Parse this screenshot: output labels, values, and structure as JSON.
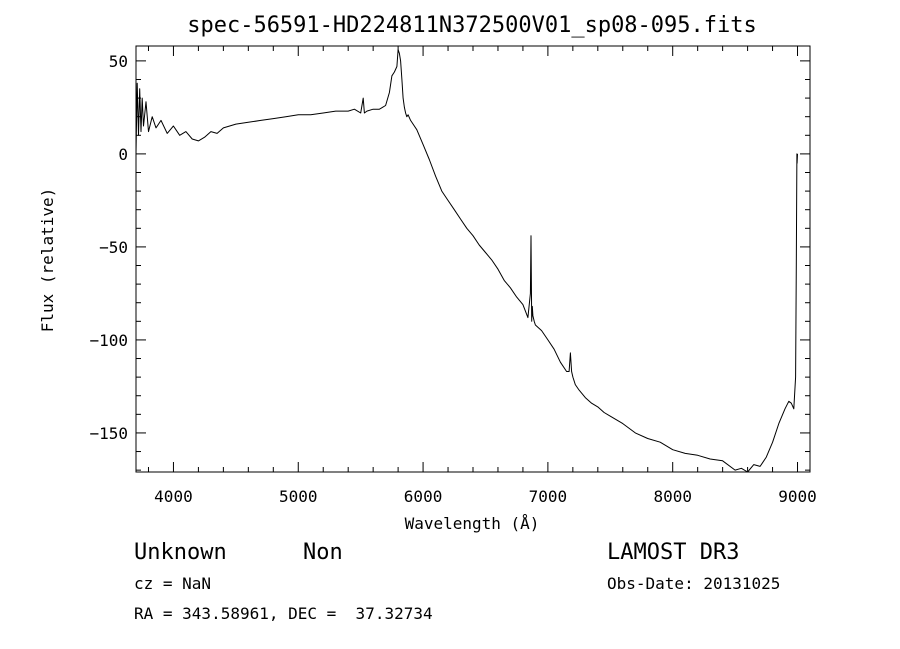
{
  "chart_data": {
    "type": "line",
    "title": "spec-56591-HD224811N372500V01_sp08-095.fits",
    "xlabel": "Wavelength (Å)",
    "ylabel": "Flux (relative)",
    "xlim": [
      3700,
      9100
    ],
    "ylim": [
      -171,
      58
    ],
    "xticks": [
      4000,
      5000,
      6000,
      7000,
      8000,
      9000
    ],
    "yticks": [
      50,
      0,
      -50,
      -100,
      -150
    ],
    "xtick_labels": [
      "4000",
      "5000",
      "6000",
      "7000",
      "8000",
      "9000"
    ],
    "ytick_labels": [
      "50",
      "0",
      "−50",
      "−100",
      "−150"
    ],
    "grid": false,
    "legend": "none",
    "series": [
      {
        "x": [
          3700,
          3710,
          3720,
          3730,
          3740,
          3750,
          3760,
          3780,
          3800,
          3830,
          3860,
          3900,
          3950,
          4000,
          4050,
          4100,
          4150,
          4200,
          4250,
          4300,
          4350,
          4400,
          4500,
          4600,
          4700,
          4800,
          4900,
          5000,
          5100,
          5200,
          5300,
          5400,
          5450,
          5500,
          5520,
          5530,
          5550,
          5600,
          5650,
          5700,
          5730,
          5750,
          5770,
          5790,
          5800,
          5810,
          5820,
          5830,
          5840,
          5850,
          5860,
          5870,
          5880,
          5900,
          5950,
          6000,
          6050,
          6100,
          6150,
          6200,
          6250,
          6300,
          6350,
          6400,
          6450,
          6500,
          6550,
          6600,
          6650,
          6700,
          6750,
          6800,
          6840,
          6860,
          6865,
          6870,
          6875,
          6880,
          6890,
          6900,
          6950,
          7000,
          7050,
          7100,
          7150,
          7170,
          7180,
          7190,
          7200,
          7220,
          7250,
          7300,
          7350,
          7400,
          7450,
          7500,
          7600,
          7700,
          7800,
          7900,
          8000,
          8100,
          8200,
          8300,
          8400,
          8500,
          8550,
          8600,
          8650,
          8700,
          8750,
          8800,
          8850,
          8900,
          8930,
          8950,
          8970,
          8985,
          8990,
          8995,
          8997,
          9000
        ],
        "y": [
          0,
          38,
          10,
          35,
          12,
          30,
          15,
          28,
          12,
          20,
          14,
          18,
          11,
          15,
          10,
          12,
          8,
          7,
          9,
          12,
          11,
          14,
          16,
          17,
          18,
          19,
          20,
          21,
          21,
          22,
          23,
          23,
          24,
          22,
          30,
          22,
          23,
          24,
          24,
          26,
          33,
          42,
          44,
          47,
          56,
          54,
          50,
          40,
          30,
          25,
          22,
          20,
          21,
          18,
          13,
          5,
          -3,
          -12,
          -20,
          -25,
          -30,
          -35,
          -40,
          -44,
          -49,
          -53,
          -57,
          -62,
          -68,
          -72,
          -77,
          -81,
          -88,
          -75,
          -44,
          -90,
          -82,
          -87,
          -90,
          -92,
          -95,
          -100,
          -105,
          -112,
          -117,
          -117,
          -107,
          -117,
          -120,
          -124,
          -127,
          -131,
          -134,
          -136,
          -139,
          -141,
          -145,
          -150,
          -153,
          -155,
          -159,
          -161,
          -162,
          -164,
          -165,
          -170,
          -169,
          -171,
          -167,
          -168,
          -163,
          -155,
          -145,
          -137,
          -133,
          -134,
          -137,
          -120,
          -60,
          0,
          -5,
          0
        ]
      }
    ]
  },
  "info": {
    "object": "Unknown",
    "class": "Non",
    "cz": "cz = NaN",
    "coords": "RA = 343.58961, DEC =  37.32734",
    "survey": "LAMOST DR3",
    "obsdate": "Obs-Date: 20131025"
  }
}
